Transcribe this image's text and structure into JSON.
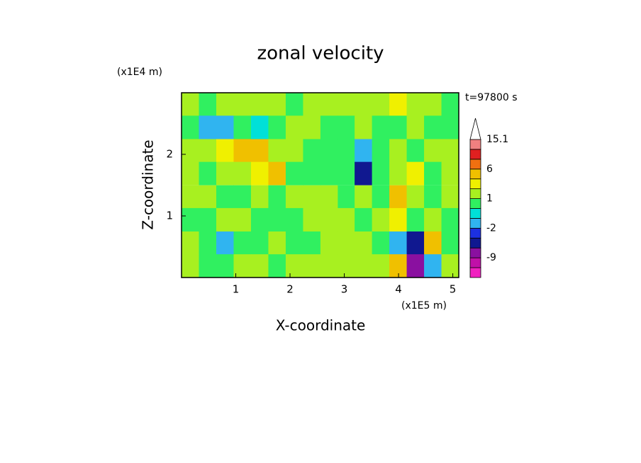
{
  "chart_data": {
    "type": "contour",
    "title": "zonal velocity",
    "x_label": "X-coordinate",
    "y_label": "Z-coordinate",
    "x_unit": "(x1E5 m)",
    "y_unit": "(x1E4 m)",
    "time_label": "t=97800 s",
    "xlim": [
      0,
      5.11
    ],
    "ylim": [
      0,
      3
    ],
    "xticks": [
      1,
      2,
      3,
      4,
      5
    ],
    "yticks": [
      1,
      2
    ],
    "x": [
      0.16,
      0.48,
      0.8,
      1.12,
      1.44,
      1.76,
      2.08,
      2.4,
      2.72,
      3.04,
      3.35,
      3.67,
      3.99,
      4.31,
      4.63,
      4.95
    ],
    "y": [
      2.81,
      2.44,
      2.06,
      1.69,
      1.31,
      0.94,
      0.56,
      0.19
    ],
    "values": [
      [
        1.5,
        0.5,
        1.5,
        1.5,
        1.5,
        1.5,
        0.5,
        1.5,
        1.5,
        1.5,
        1.5,
        1.5,
        2.5,
        1.5,
        1.5,
        0.5
      ],
      [
        0.5,
        -1.5,
        -1.5,
        0.5,
        -0.5,
        0.5,
        1.5,
        1.5,
        0.5,
        0.5,
        1.5,
        0.5,
        0.5,
        1.5,
        0.5,
        0.5
      ],
      [
        1.5,
        1.5,
        2.5,
        4,
        4,
        1.5,
        1.5,
        0.5,
        0.5,
        0.5,
        -1.5,
        0.5,
        1.5,
        0.5,
        1.5,
        1.5
      ],
      [
        1.5,
        0.5,
        1.5,
        1.5,
        2.5,
        4,
        0.5,
        0.5,
        0.5,
        0.5,
        -5,
        0.5,
        1.5,
        2.5,
        0.5,
        1.5
      ],
      [
        1.5,
        1.5,
        0.5,
        0.5,
        1.5,
        0.5,
        1.5,
        1.5,
        1.5,
        0.5,
        1.5,
        0.5,
        4,
        1.5,
        0.5,
        1.5
      ],
      [
        0.5,
        0.5,
        1.5,
        1.5,
        0.5,
        0.5,
        0.5,
        1.5,
        1.5,
        1.5,
        0.5,
        1.5,
        2.5,
        0.5,
        1.5,
        0.5
      ],
      [
        1.5,
        0.5,
        -1.5,
        0.5,
        0.5,
        1.5,
        0.5,
        0.5,
        1.5,
        1.5,
        1.5,
        0.5,
        -1.5,
        -5,
        4,
        0.5
      ],
      [
        1.5,
        0.5,
        0.5,
        1.5,
        1.5,
        0.5,
        1.5,
        1.5,
        1.5,
        1.5,
        1.5,
        1.5,
        4,
        -7,
        -1.5,
        1.5
      ]
    ],
    "colorbar": {
      "levels": [
        -15,
        -12,
        -9,
        -6,
        -4,
        -2,
        -1,
        0,
        1,
        2,
        3,
        6,
        9,
        12,
        15.1
      ],
      "colors": [
        "#f020c0",
        "#c010a8",
        "#8a10a0",
        "#101890",
        "#1c30e0",
        "#30b4f0",
        "#00e0d8",
        "#30f060",
        "#a8f020",
        "#f0f000",
        "#f0c000",
        "#f07010",
        "#e02020",
        "#f08080"
      ],
      "over_color": "#ffffff",
      "labels": [
        15.1,
        6,
        1,
        -2,
        -9
      ]
    }
  }
}
